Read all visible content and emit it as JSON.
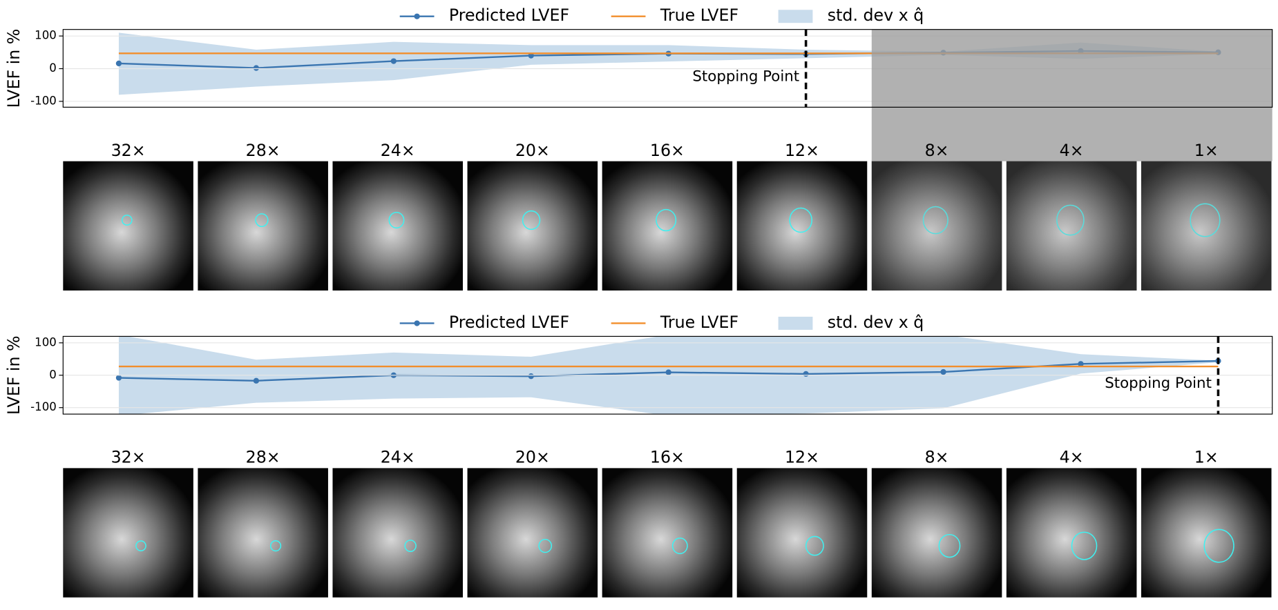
{
  "chart_data": [
    {
      "type": "line",
      "categories": [
        "32×",
        "28×",
        "24×",
        "20×",
        "16×",
        "12×",
        "8×",
        "4×",
        "1×"
      ],
      "ylabel": "LVEF in %",
      "ylim": [
        -118,
        120
      ],
      "yticks": [
        -100,
        0,
        100
      ],
      "grid": true,
      "series": [
        {
          "name": "Predicted LVEF",
          "color": "#3a75b0",
          "marker": true,
          "values": [
            16,
            2,
            23,
            40,
            46,
            45,
            49,
            54,
            50
          ]
        },
        {
          "name": "True LVEF",
          "color": "#f28e2b",
          "marker": false,
          "values": [
            47,
            47,
            47,
            47,
            47,
            47,
            47,
            47,
            47
          ]
        }
      ],
      "band": {
        "name": "std. dev x q̂",
        "color": "#c9dcec",
        "upper": [
          110,
          58,
          82,
          72,
          72,
          58,
          52,
          80,
          52
        ],
        "lower": [
          -80,
          -55,
          -35,
          12,
          22,
          32,
          42,
          30,
          45
        ]
      },
      "annotation": "Stopping Point",
      "stop_index": 5
    },
    {
      "type": "line",
      "categories": [
        "32×",
        "28×",
        "24×",
        "20×",
        "16×",
        "12×",
        "8×",
        "4×",
        "1×"
      ],
      "ylabel": "LVEF in %",
      "ylim": [
        -120,
        120
      ],
      "yticks": [
        -100,
        0,
        100
      ],
      "grid": true,
      "series": [
        {
          "name": "Predicted LVEF",
          "color": "#3a75b0",
          "marker": true,
          "values": [
            -8,
            -17,
            0,
            -3,
            9,
            4,
            10,
            35,
            44
          ]
        },
        {
          "name": "True LVEF",
          "color": "#f28e2b",
          "marker": false,
          "values": [
            27,
            27,
            27,
            27,
            27,
            27,
            27,
            27,
            27
          ]
        }
      ],
      "band": {
        "name": "std. dev x q̂",
        "color": "#c9dcec",
        "upper": [
          125,
          48,
          70,
          57,
          125,
          125,
          125,
          65,
          45
        ],
        "lower": [
          -125,
          -85,
          -72,
          -68,
          -125,
          -118,
          -102,
          5,
          40
        ]
      },
      "annotation": "Stopping Point",
      "stop_index": 8
    }
  ]
}
